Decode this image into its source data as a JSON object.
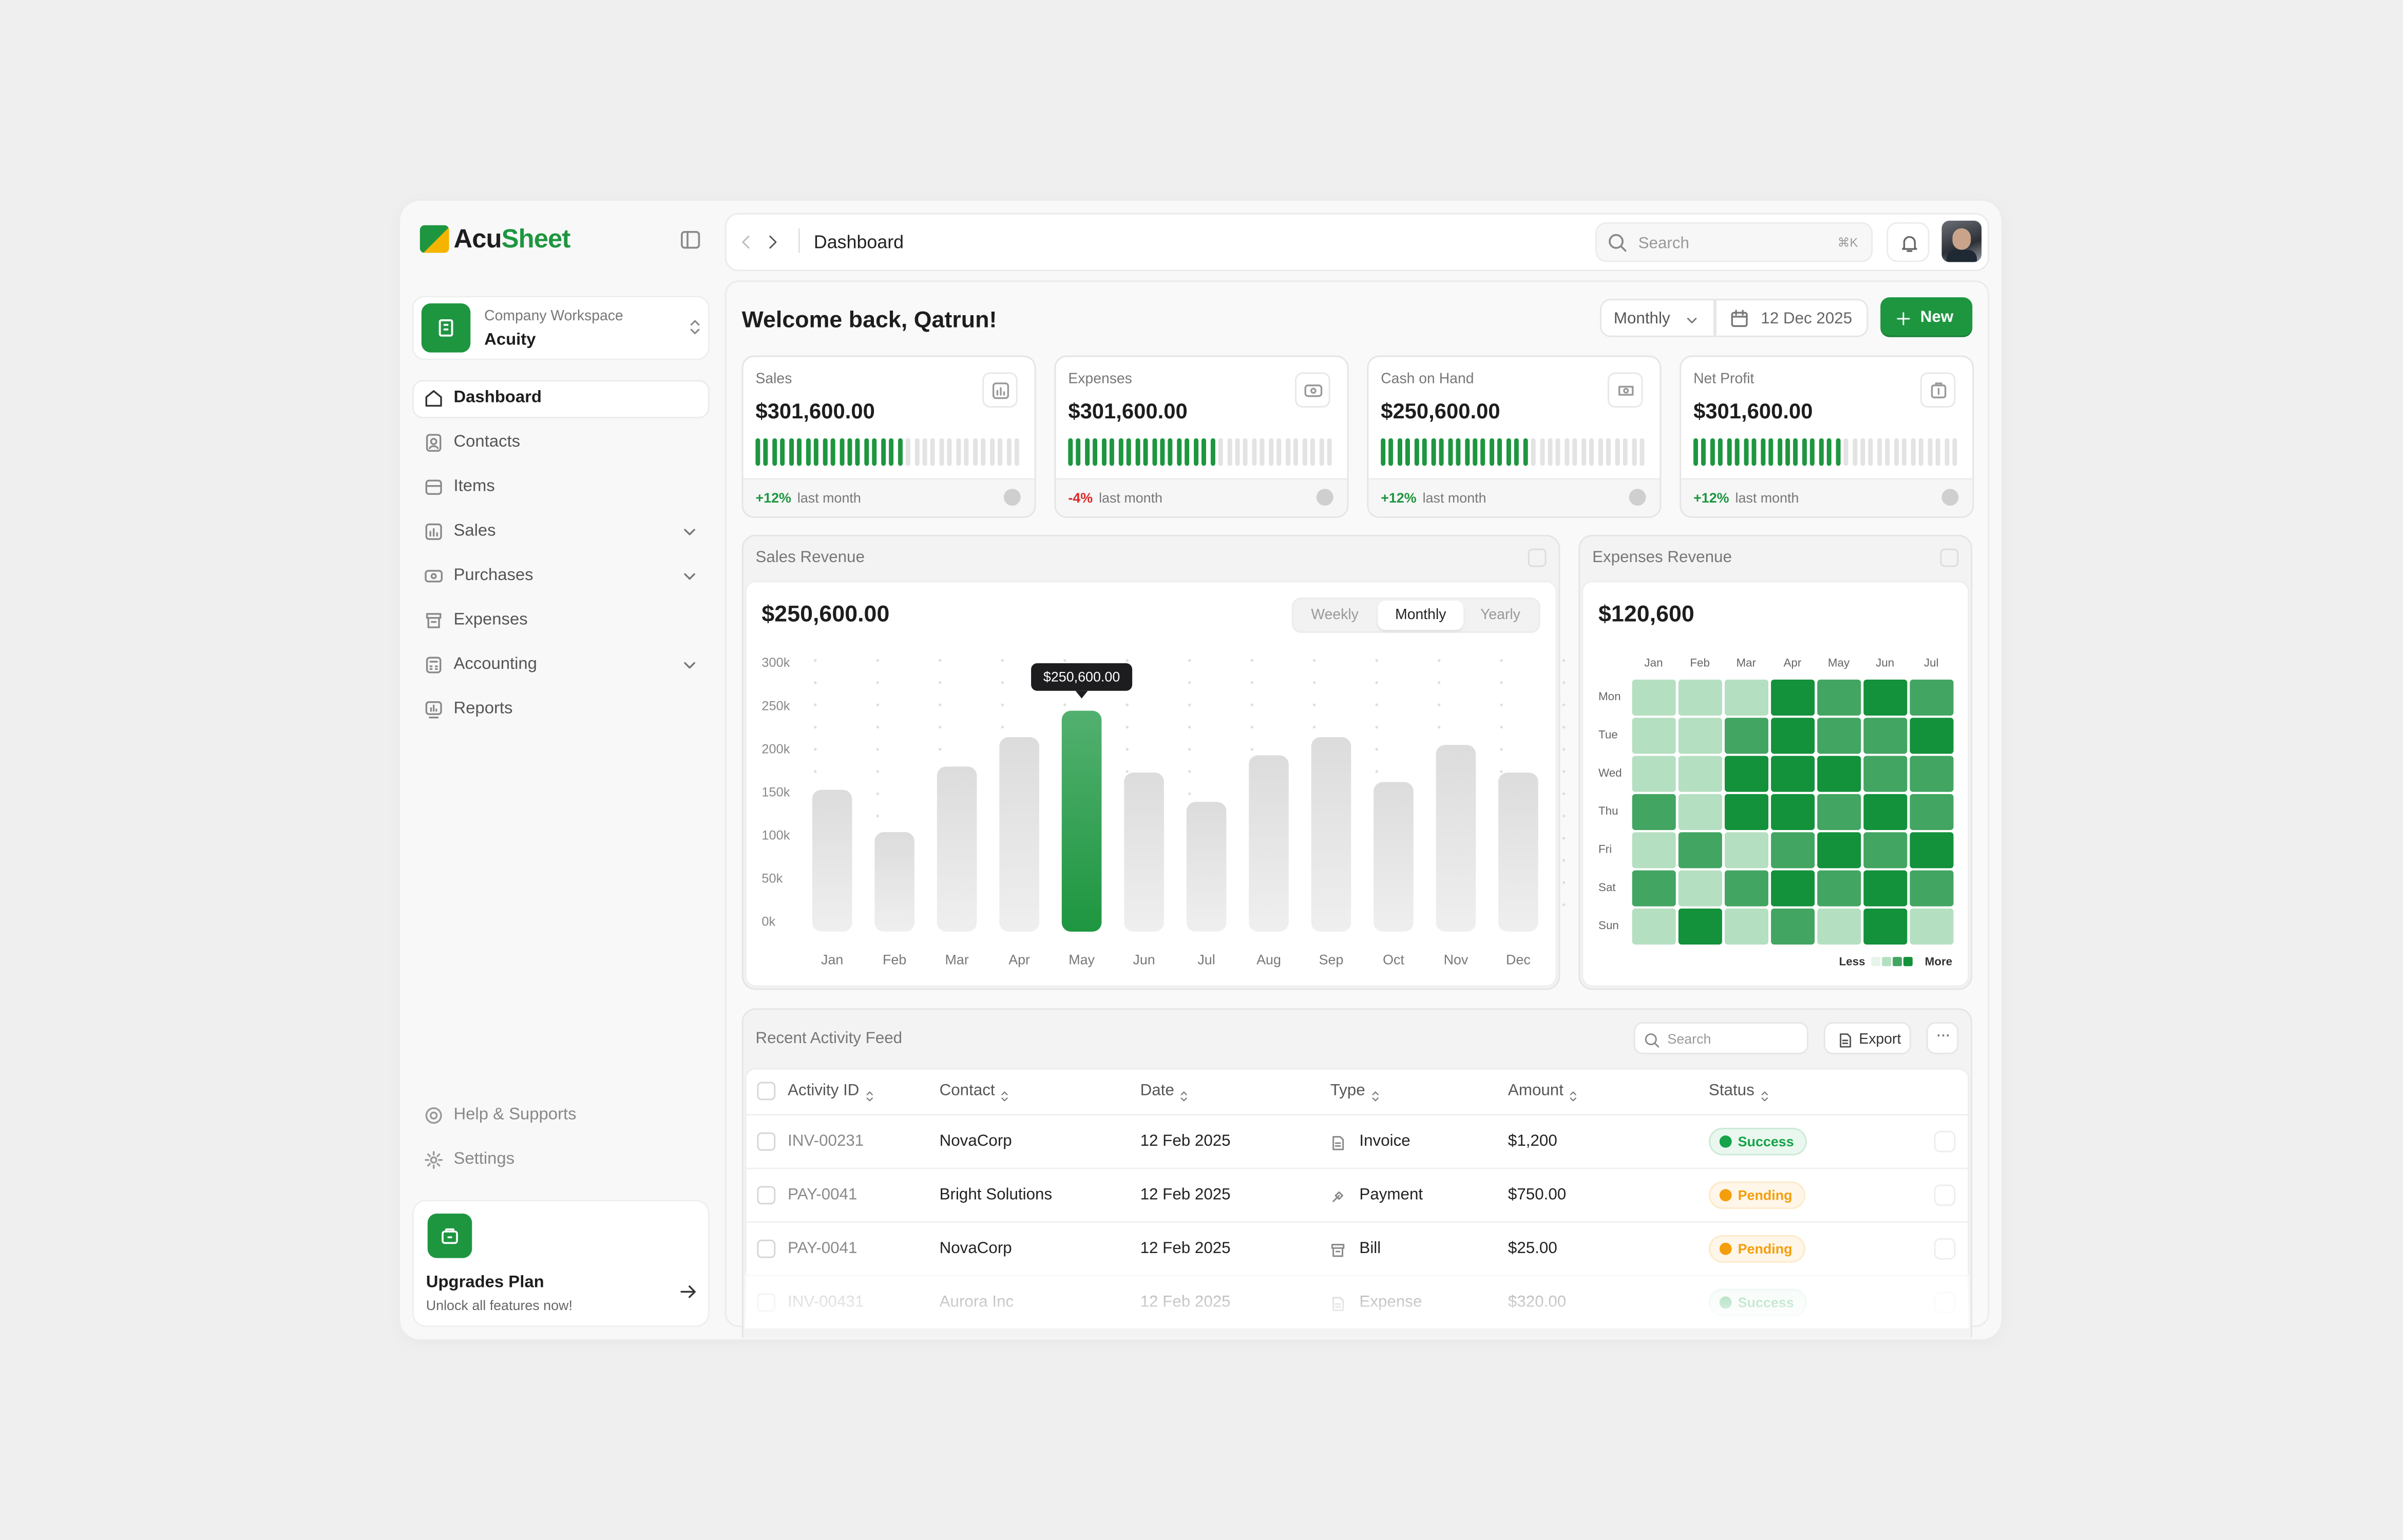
{
  "brand": [
    "Acu",
    "Sheet"
  ],
  "workspace": {
    "label": "Company Workspace",
    "name": "Acuity"
  },
  "nav": [
    {
      "label": "Dashboard",
      "active": true
    },
    {
      "label": "Contacts"
    },
    {
      "label": "Items"
    },
    {
      "label": "Sales",
      "expandable": true
    },
    {
      "label": "Purchases",
      "expandable": true
    },
    {
      "label": "Expenses"
    },
    {
      "label": "Accounting",
      "expandable": true
    },
    {
      "label": "Reports"
    }
  ],
  "nav_bottom": [
    "Help & Supports",
    "Settings"
  ],
  "upgrade": {
    "title": "Upgrades Plan",
    "text": "Unlock all features now!"
  },
  "breadcrumb": "Dashboard",
  "search": {
    "placeholder": "Search",
    "shortcut": "⌘K"
  },
  "welcome": "Welcome back, Qatrun!",
  "period": "Monthly",
  "date": "12 Dec 2025",
  "new_button": "New",
  "stats": [
    {
      "label": "Sales",
      "value": "$301,600.00",
      "change": "+12%",
      "change_color": "#1e9640",
      "note": "last month",
      "progress": 18
    },
    {
      "label": "Expenses",
      "value": "$301,600.00",
      "change": "-4%",
      "change_color": "#dc2626",
      "note": "last month",
      "progress": 18
    },
    {
      "label": "Cash on Hand",
      "value": "$250,600.00",
      "change": "+12%",
      "change_color": "#1e9640",
      "note": "last month",
      "progress": 18
    },
    {
      "label": "Net Profit",
      "value": "$301,600.00",
      "change": "+12%",
      "change_color": "#1e9640",
      "note": "last month",
      "progress": 18
    }
  ],
  "sales_revenue": {
    "title": "Sales Revenue",
    "total": "$250,600.00",
    "tabs": [
      "Weekly",
      "Monthly",
      "Yearly"
    ]
  },
  "expenses_revenue": {
    "title": "Expenses Revenue",
    "total": "$120,600"
  },
  "chart_data": [
    {
      "type": "bar",
      "categories": [
        "Jan",
        "Feb",
        "Mar",
        "Apr",
        "May",
        "Jun",
        "Jul",
        "Aug",
        "Sep",
        "Oct",
        "Nov",
        "Dec"
      ],
      "values": [
        159000,
        110000,
        186000,
        220000,
        250600,
        179000,
        145000,
        199000,
        220000,
        168000,
        211000,
        179000
      ],
      "value_labels": [
        null,
        null,
        null,
        null,
        "$250,600.00",
        null,
        null,
        null,
        null,
        null,
        null,
        null
      ],
      "color": "#d9d9d9",
      "highlight_color": "#1e9640",
      "ylim": [
        0,
        300000
      ],
      "yticks": [
        {
          "value": 0,
          "label": "0k"
        },
        {
          "value": 50000,
          "label": "50k"
        },
        {
          "value": 100000,
          "label": "100k"
        },
        {
          "value": 150000,
          "label": "150k"
        },
        {
          "value": 200000,
          "label": "200k"
        },
        {
          "value": 250000,
          "label": "250k"
        },
        {
          "value": 300000,
          "label": "300k"
        }
      ]
    },
    {
      "type": "heatmap",
      "x": [
        "Jan",
        "Feb",
        "Mar",
        "Apr",
        "May",
        "Jun",
        "Jul"
      ],
      "y": [
        "Mon",
        "Tue",
        "Wed",
        "Thu",
        "Fri",
        "Sat",
        "Sun"
      ],
      "values": [
        [
          1,
          1,
          1,
          3,
          2,
          3,
          2
        ],
        [
          1,
          1,
          2,
          3,
          2,
          2,
          3
        ],
        [
          1,
          1,
          3,
          3,
          3,
          2,
          2
        ],
        [
          2,
          1,
          3,
          3,
          2,
          3,
          2
        ],
        [
          1,
          2,
          1,
          2,
          3,
          2,
          3
        ],
        [
          2,
          1,
          2,
          3,
          2,
          3,
          2
        ],
        [
          1,
          3,
          1,
          2,
          1,
          3,
          1
        ]
      ],
      "colors": [
        "#b5dfc1",
        "#43a562",
        "#13913b"
      ],
      "legend": [
        "Less",
        "More"
      ]
    }
  ],
  "activity": {
    "title": "Recent Activity Feed",
    "search": "Search",
    "export": "Export",
    "columns": [
      "Activity ID",
      "Contact",
      "Date",
      "Type",
      "Amount",
      "Status"
    ],
    "rows": [
      {
        "id": "INV-00231",
        "contact": "NovaCorp",
        "date": "12 Feb 2025",
        "type": "Invoice",
        "amount": "$1,200",
        "status": "Success",
        "status_color": "#16a34a"
      },
      {
        "id": "PAY-0041",
        "contact": "Bright Solutions",
        "date": "12 Feb 2025",
        "type": "Payment",
        "amount": "$750.00",
        "status": "Pending",
        "status_color": "#f59e0b"
      },
      {
        "id": "PAY-0041",
        "contact": "NovaCorp",
        "date": "12 Feb 2025",
        "type": "Bill",
        "amount": "$25.00",
        "status": "Pending",
        "status_color": "#f59e0b"
      },
      {
        "id": "INV-00431",
        "contact": "Aurora Inc",
        "date": "12 Feb 2025",
        "type": "Expense",
        "amount": "$320.00",
        "status": "Success",
        "status_color": "#16a34a"
      }
    ]
  }
}
